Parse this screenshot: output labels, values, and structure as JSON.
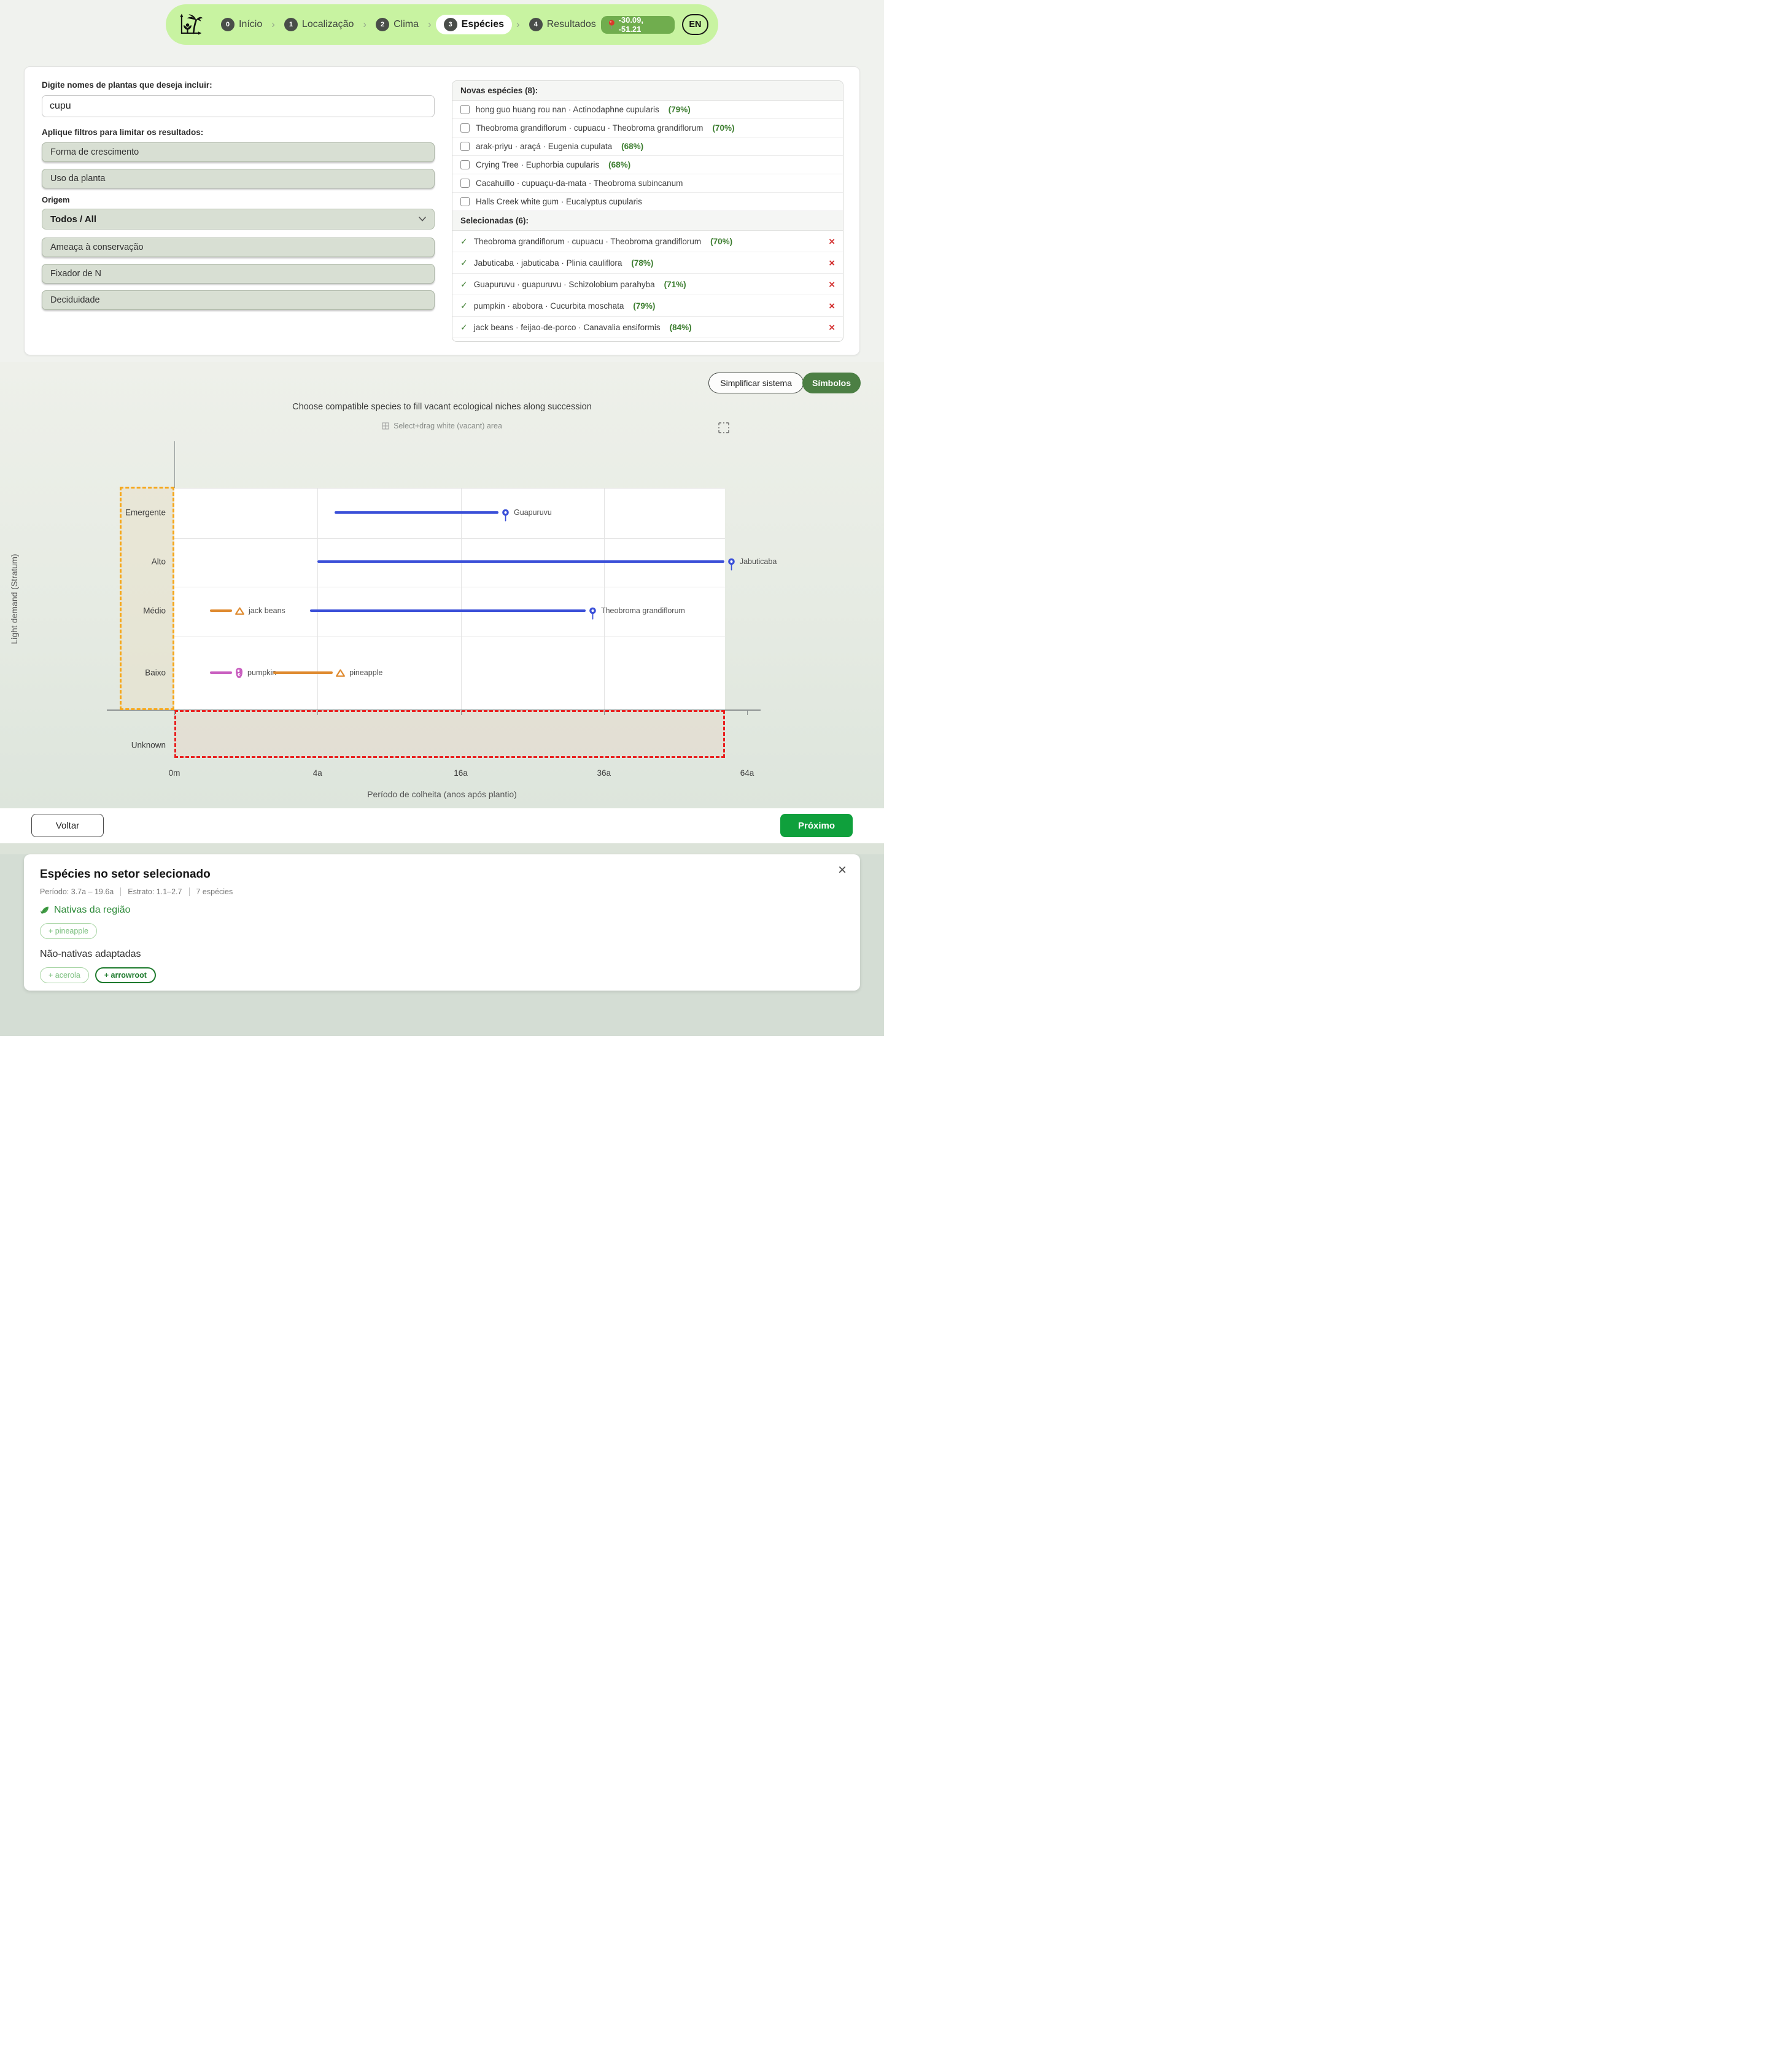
{
  "nav": {
    "steps": [
      {
        "num": "0",
        "label": "Início"
      },
      {
        "num": "1",
        "label": "Localização"
      },
      {
        "num": "2",
        "label": "Clima"
      },
      {
        "num": "3",
        "label": "Espécies"
      },
      {
        "num": "4",
        "label": "Resultados"
      }
    ],
    "active_step": "Espécies",
    "coordinates": "-30.09, -51.21",
    "language": "EN"
  },
  "filters": {
    "search_label": "Digite nomes de plantas que deseja incluir:",
    "search_value": "cupu",
    "apply_label": "Aplique filtros para limitar os resultados:",
    "growth_form": "Forma de crescimento",
    "plant_use": "Uso da planta",
    "origin_label": "Origem",
    "origin_value": "Todos / All",
    "conservation": "Ameaça à conservação",
    "n_fixer": "Fixador de N",
    "deciduous": "Deciduidade"
  },
  "species": {
    "new_header": "Novas espécies (8):",
    "new_items": [
      {
        "label": "hong guo huang rou nan · Actinodaphne cupularis",
        "match": "(79%)"
      },
      {
        "label": "Theobroma grandiflorum · cupuacu · Theobroma grandiflorum",
        "match": "(70%)"
      },
      {
        "label": "arak-priyu · araçá · Eugenia cupulata",
        "match": "(68%)"
      },
      {
        "label": "Crying Tree · Euphorbia cupularis",
        "match": "(68%)"
      },
      {
        "label": "Cacahuillo · cupuaçu-da-mata · Theobroma subincanum",
        "match": ""
      },
      {
        "label": "Halls Creek white gum · Eucalyptus cupularis",
        "match": ""
      }
    ],
    "selected_header": "Selecionadas (6):",
    "selected_items": [
      {
        "label": "Theobroma grandiflorum · cupuacu · Theobroma grandiflorum",
        "match": "(70%)"
      },
      {
        "label": "Jabuticaba · jabuticaba · Plinia cauliflora",
        "match": "(78%)"
      },
      {
        "label": "Guapuruvu · guapuruvu · Schizolobium parahyba",
        "match": "(71%)"
      },
      {
        "label": "pumpkin · abobora · Cucurbita moschata",
        "match": "(79%)"
      },
      {
        "label": "jack beans · feijao-de-porco · Canavalia ensiformis",
        "match": "(84%)"
      }
    ]
  },
  "actions": {
    "simplify": "Simplificar sistema",
    "symbols": "Símbolos",
    "back": "Voltar",
    "next": "Próximo"
  },
  "chart_data": {
    "type": "scatter",
    "title": "Choose compatible species to fill vacant ecological niches along succession",
    "subtitle": "Select+drag white (vacant) area",
    "xlabel": "Período de colheita (anos após plantio)",
    "ylabel": "Light demand (Stratum)",
    "x_ticks": [
      "0m",
      "4a",
      "16a",
      "36a",
      "64a"
    ],
    "x_tick_years": [
      0,
      4,
      16,
      36,
      64
    ],
    "x_scale": "sqrt",
    "x_range_years": [
      0,
      64
    ],
    "y_categories": [
      "Emergente",
      "Alto",
      "Médio",
      "Baixo",
      "Unknown"
    ],
    "series": [
      {
        "name": "Guapuruvu",
        "stratum": "Emergente",
        "start_years": 5,
        "end_years": 20.5,
        "marker": "pin",
        "color": "#3a4fd8"
      },
      {
        "name": "Jabuticaba",
        "stratum": "Alto",
        "start_years": 4,
        "end_years": 59,
        "marker": "pin",
        "color": "#3a4fd8"
      },
      {
        "name": "jack beans",
        "stratum": "Médio",
        "start_years": 0.25,
        "end_years": 0.65,
        "marker": "triangle",
        "color": "#df8a2f"
      },
      {
        "name": "Theobroma grandiflorum",
        "stratum": "Médio",
        "start_years": 3.6,
        "end_years": 33,
        "marker": "pin",
        "color": "#3a4fd8"
      },
      {
        "name": "pumpkin",
        "stratum": "Baixo",
        "start_years": 0.25,
        "end_years": 0.65,
        "marker": "pumpkin",
        "color": "#c95fc0"
      },
      {
        "name": "pineapple",
        "stratum": "Baixo",
        "start_years": 1.9,
        "end_years": 4.9,
        "marker": "triangle",
        "color": "#df8a2f"
      }
    ],
    "selection_regions": [
      {
        "name": "orange-selection",
        "strata": [
          "Emergente",
          "Baixo"
        ],
        "border": "#f6a71b"
      },
      {
        "name": "red-selection",
        "strata": [
          "Unknown"
        ],
        "border": "#e91f1f"
      }
    ],
    "legend_position": "none",
    "grid": true
  },
  "panel": {
    "title": "Espécies no setor selecionado",
    "meta": {
      "period": "Período: 3.7a – 19.6a",
      "stratum": "Estrato: 1.1–2.7",
      "count": "7 espécies"
    },
    "native_header": "Nativas da região",
    "native_chips": [
      {
        "label": "+ pineapple",
        "emphasis": false
      }
    ],
    "nonnative_header": "Não-nativas adaptadas",
    "nonnative_chips": [
      {
        "label": "+ acerola",
        "emphasis": false
      },
      {
        "label": "+ arrowroot",
        "emphasis": true
      }
    ]
  }
}
